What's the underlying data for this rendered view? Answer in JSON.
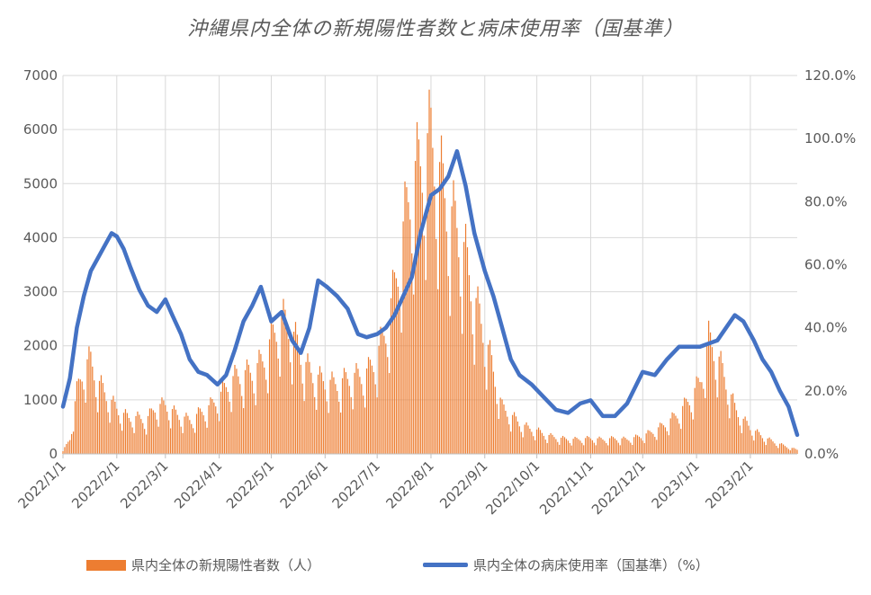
{
  "title": "沖縄県内全体の新規陽性者数と病床使用率（国基準）",
  "colors": {
    "bars": "#ED7D31",
    "line": "#4472C4",
    "grid": "#D9D9D9",
    "axis_text": "#595959"
  },
  "legend": {
    "bars_label": "県内全体の新規陽性者数（人）",
    "line_label": "県内全体の病床使用率（国基準）（%）"
  },
  "chart_data": {
    "type": "bar+line",
    "title": "沖縄県内全体の新規陽性者数と病床使用率（国基準）",
    "legend_position": "bottom",
    "grid": {
      "horizontal": true,
      "vertical": true
    },
    "x": {
      "type": "date",
      "range": [
        "2022-01-01",
        "2023-02-28"
      ],
      "tick_labels": [
        "2022/1/1",
        "2022/2/1",
        "2022/3/1",
        "2022/4/1",
        "2022/5/1",
        "2022/6/1",
        "2022/7/1",
        "2022/8/1",
        "2022/9/1",
        "2022/10/1",
        "2022/11/1",
        "2022/12/1",
        "2023/1/1",
        "2023/2/1"
      ],
      "tick_dates": [
        "2022-01-01",
        "2022-02-01",
        "2022-03-01",
        "2022-04-01",
        "2022-05-01",
        "2022-06-01",
        "2022-07-01",
        "2022-08-01",
        "2022-09-01",
        "2022-10-01",
        "2022-11-01",
        "2022-12-01",
        "2023-01-01",
        "2023-02-01"
      ]
    },
    "y_left": {
      "range": [
        0,
        7000
      ],
      "tick_labels": [
        "0",
        "1000",
        "2000",
        "3000",
        "4000",
        "5000",
        "6000",
        "7000"
      ]
    },
    "y_right": {
      "range": [
        0,
        120
      ],
      "tick_labels": [
        "0.0%",
        "20.0%",
        "40.0%",
        "60.0%",
        "80.0%",
        "100.0%",
        "120.0%"
      ]
    },
    "series": [
      {
        "name": "県内全体の新規陽性者数（人）",
        "type": "bar",
        "axis": "left",
        "dates": [
          "2022-01-01",
          "2022-01-05",
          "2022-01-09",
          "2022-01-13",
          "2022-01-17",
          "2022-01-21",
          "2022-01-25",
          "2022-01-29",
          "2022-02-03",
          "2022-02-08",
          "2022-02-13",
          "2022-02-18",
          "2022-02-23",
          "2022-03-01",
          "2022-03-06",
          "2022-03-11",
          "2022-03-16",
          "2022-03-21",
          "2022-03-26",
          "2022-04-01",
          "2022-04-06",
          "2022-04-11",
          "2022-04-16",
          "2022-04-21",
          "2022-04-26",
          "2022-05-01",
          "2022-05-06",
          "2022-05-11",
          "2022-05-16",
          "2022-05-21",
          "2022-05-26",
          "2022-06-01",
          "2022-06-06",
          "2022-06-11",
          "2022-06-16",
          "2022-06-21",
          "2022-06-26",
          "2022-07-01",
          "2022-07-06",
          "2022-07-11",
          "2022-07-16",
          "2022-07-21",
          "2022-07-26",
          "2022-08-01",
          "2022-08-06",
          "2022-08-11",
          "2022-08-16",
          "2022-08-21",
          "2022-08-26",
          "2022-09-01",
          "2022-09-06",
          "2022-09-11",
          "2022-09-16",
          "2022-09-21",
          "2022-09-26",
          "2022-10-01",
          "2022-10-08",
          "2022-10-15",
          "2022-10-22",
          "2022-11-01",
          "2022-11-08",
          "2022-11-15",
          "2022-11-22",
          "2022-12-01",
          "2022-12-08",
          "2022-12-15",
          "2022-12-22",
          "2022-12-29",
          "2023-01-03",
          "2023-01-08",
          "2023-01-13",
          "2023-01-18",
          "2023-01-23",
          "2023-01-28",
          "2023-02-03",
          "2023-02-10",
          "2023-02-17",
          "2023-02-24",
          "2023-02-28"
        ],
        "values": [
          50,
          300,
          1200,
          1700,
          1800,
          1400,
          1200,
          1000,
          800,
          700,
          700,
          650,
          900,
          950,
          800,
          700,
          650,
          800,
          900,
          1100,
          1350,
          1500,
          1550,
          1600,
          1800,
          2200,
          2600,
          2500,
          2100,
          1700,
          1500,
          1400,
          1350,
          1400,
          1500,
          1500,
          1600,
          1900,
          2400,
          3200,
          4300,
          5300,
          5600,
          6100,
          5400,
          4700,
          4400,
          3800,
          3000,
          2300,
          1600,
          900,
          750,
          600,
          500,
          450,
          350,
          300,
          280,
          300,
          280,
          300,
          280,
          350,
          450,
          600,
          800,
          1100,
          1400,
          2200,
          1900,
          1400,
          900,
          650,
          450,
          300,
          200,
          120,
          80
        ]
      },
      {
        "name": "県内全体の病床使用率（国基準）（%）",
        "type": "line",
        "axis": "right",
        "dates": [
          "2022-01-01",
          "2022-01-05",
          "2022-01-09",
          "2022-01-13",
          "2022-01-17",
          "2022-01-21",
          "2022-01-25",
          "2022-01-29",
          "2022-02-01",
          "2022-02-05",
          "2022-02-09",
          "2022-02-14",
          "2022-02-19",
          "2022-02-24",
          "2022-03-01",
          "2022-03-05",
          "2022-03-10",
          "2022-03-15",
          "2022-03-20",
          "2022-03-25",
          "2022-03-31",
          "2022-04-05",
          "2022-04-10",
          "2022-04-15",
          "2022-04-20",
          "2022-04-25",
          "2022-05-01",
          "2022-05-07",
          "2022-05-13",
          "2022-05-18",
          "2022-05-23",
          "2022-05-28",
          "2022-06-02",
          "2022-06-08",
          "2022-06-14",
          "2022-06-20",
          "2022-06-25",
          "2022-07-01",
          "2022-07-06",
          "2022-07-11",
          "2022-07-16",
          "2022-07-21",
          "2022-07-26",
          "2022-08-01",
          "2022-08-06",
          "2022-08-11",
          "2022-08-16",
          "2022-08-21",
          "2022-08-26",
          "2022-09-01",
          "2022-09-06",
          "2022-09-11",
          "2022-09-16",
          "2022-09-21",
          "2022-09-28",
          "2022-10-05",
          "2022-10-12",
          "2022-10-19",
          "2022-10-26",
          "2022-11-01",
          "2022-11-08",
          "2022-11-15",
          "2022-11-22",
          "2022-12-01",
          "2022-12-08",
          "2022-12-15",
          "2022-12-22",
          "2022-12-29",
          "2023-01-03",
          "2023-01-08",
          "2023-01-13",
          "2023-01-18",
          "2023-01-23",
          "2023-01-28",
          "2023-02-03",
          "2023-02-08",
          "2023-02-13",
          "2023-02-18",
          "2023-02-23",
          "2023-02-28"
        ],
        "values": [
          15,
          24,
          40,
          50,
          58,
          62,
          66,
          70,
          69,
          65,
          59,
          52,
          47,
          45,
          49,
          44,
          38,
          30,
          26,
          25,
          22,
          25,
          33,
          42,
          47,
          53,
          42,
          45,
          36,
          32,
          40,
          55,
          53,
          50,
          46,
          38,
          37,
          38,
          40,
          44,
          50,
          56,
          70,
          82,
          84,
          88,
          96,
          85,
          70,
          58,
          50,
          40,
          30,
          25,
          22,
          18,
          14,
          13,
          16,
          17,
          12,
          12,
          16,
          26,
          25,
          30,
          34,
          34,
          34,
          35,
          36,
          40,
          44,
          42,
          36,
          30,
          26,
          20,
          15,
          6
        ]
      }
    ]
  }
}
